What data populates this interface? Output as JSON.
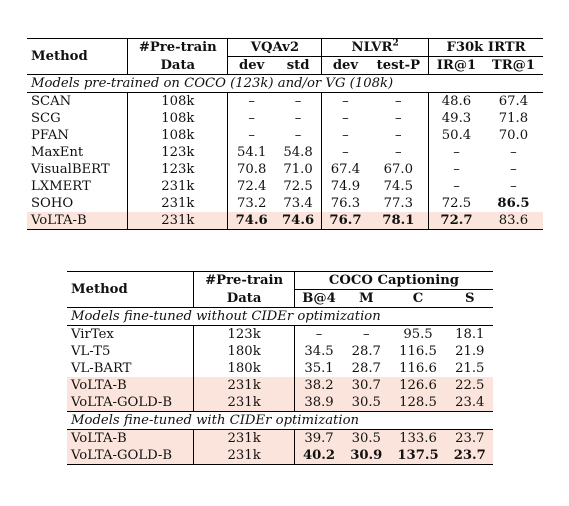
{
  "table1": {
    "header": {
      "method": "Method",
      "pretrain_line1": "#Pre-train",
      "pretrain_line2": "Data",
      "vqa": "VQAv2",
      "nlvr": "NLVR",
      "nlvr_sup": "2",
      "f30k": "F30k IRTR",
      "sub": [
        "dev",
        "std",
        "dev",
        "test-P",
        "IR@1",
        "TR@1"
      ]
    },
    "section": "Models pre-trained on COCO (123k) and/or VG (108k)",
    "rows": [
      {
        "method": "SCAN",
        "data": "108k",
        "cells": [
          "–",
          "–",
          "–",
          "–",
          "48.6",
          "67.4"
        ]
      },
      {
        "method": "SCG",
        "data": "108k",
        "cells": [
          "–",
          "–",
          "–",
          "–",
          "49.3",
          "71.8"
        ]
      },
      {
        "method": "PFAN",
        "data": "108k",
        "cells": [
          "–",
          "–",
          "–",
          "–",
          "50.4",
          "70.0"
        ]
      },
      {
        "method": "MaxEnt",
        "data": "123k",
        "cells": [
          "54.1",
          "54.8",
          "–",
          "–",
          "–",
          "–"
        ]
      },
      {
        "method": "VisualBERT",
        "data": "123k",
        "cells": [
          "70.8",
          "71.0",
          "67.4",
          "67.0",
          "–",
          "–"
        ]
      },
      {
        "method": "LXMERT",
        "data": "231k",
        "cells": [
          "72.4",
          "72.5",
          "74.9",
          "74.5",
          "–",
          "–"
        ]
      },
      {
        "method": "SOHO",
        "data": "231k",
        "cells": [
          "73.2",
          "73.4",
          "76.3",
          "77.3",
          "72.5",
          "86.5"
        ]
      },
      {
        "method": "VoLTA-B",
        "data": "231k",
        "cells": [
          "74.6",
          "74.6",
          "76.7",
          "78.1",
          "72.7",
          "83.6"
        ]
      }
    ]
  },
  "table2": {
    "header": {
      "method": "Method",
      "pretrain_line1": "#Pre-train",
      "pretrain_line2": "Data",
      "coco": "COCO Captioning",
      "sub": [
        "B@4",
        "M",
        "C",
        "S"
      ]
    },
    "section1": "Models fine-tuned without CIDEr optimization",
    "rows1": [
      {
        "method": "VirTex",
        "data": "123k",
        "cells": [
          "–",
          "–",
          "95.5",
          "18.1"
        ]
      },
      {
        "method": "VL-T5",
        "data": "180k",
        "cells": [
          "34.5",
          "28.7",
          "116.5",
          "21.9"
        ]
      },
      {
        "method": "VL-BART",
        "data": "180k",
        "cells": [
          "35.1",
          "28.7",
          "116.6",
          "21.5"
        ]
      },
      {
        "method": "VoLTA-B",
        "data": "231k",
        "cells": [
          "38.2",
          "30.7",
          "126.6",
          "22.5"
        ]
      },
      {
        "method": "VoLTA-GOLD-B",
        "data": "231k",
        "cells": [
          "38.9",
          "30.5",
          "128.5",
          "23.4"
        ]
      }
    ],
    "section2": "Models fine-tuned with CIDEr optimization",
    "rows2": [
      {
        "method": "VoLTA-B",
        "data": "231k",
        "cells": [
          "39.7",
          "30.5",
          "133.6",
          "23.7"
        ]
      },
      {
        "method": "VoLTA-GOLD-B",
        "data": "231k",
        "cells": [
          "40.2",
          "30.9",
          "137.5",
          "23.7"
        ]
      }
    ]
  },
  "colors": {
    "highlight": "#fbe4dc"
  }
}
